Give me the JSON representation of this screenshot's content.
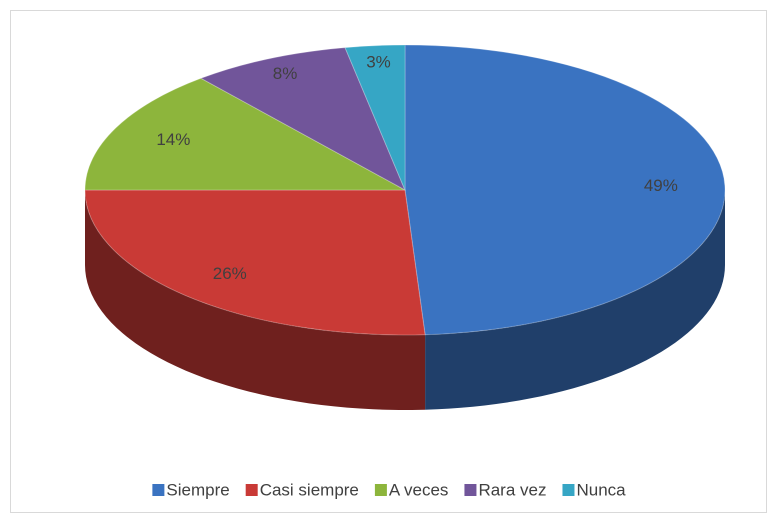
{
  "chart_data": {
    "type": "pie",
    "categories": [
      "Siempre",
      "Casi siempre",
      "A veces",
      "Rara vez",
      "Nunca"
    ],
    "values": [
      49,
      26,
      14,
      8,
      3
    ],
    "value_labels": [
      "49%",
      "26%",
      "14%",
      "8%",
      "3%"
    ],
    "colors": [
      "#3a73c1",
      "#c93a36",
      "#8db53c",
      "#71559a",
      "#36a6c5"
    ],
    "legend": "bottom"
  }
}
